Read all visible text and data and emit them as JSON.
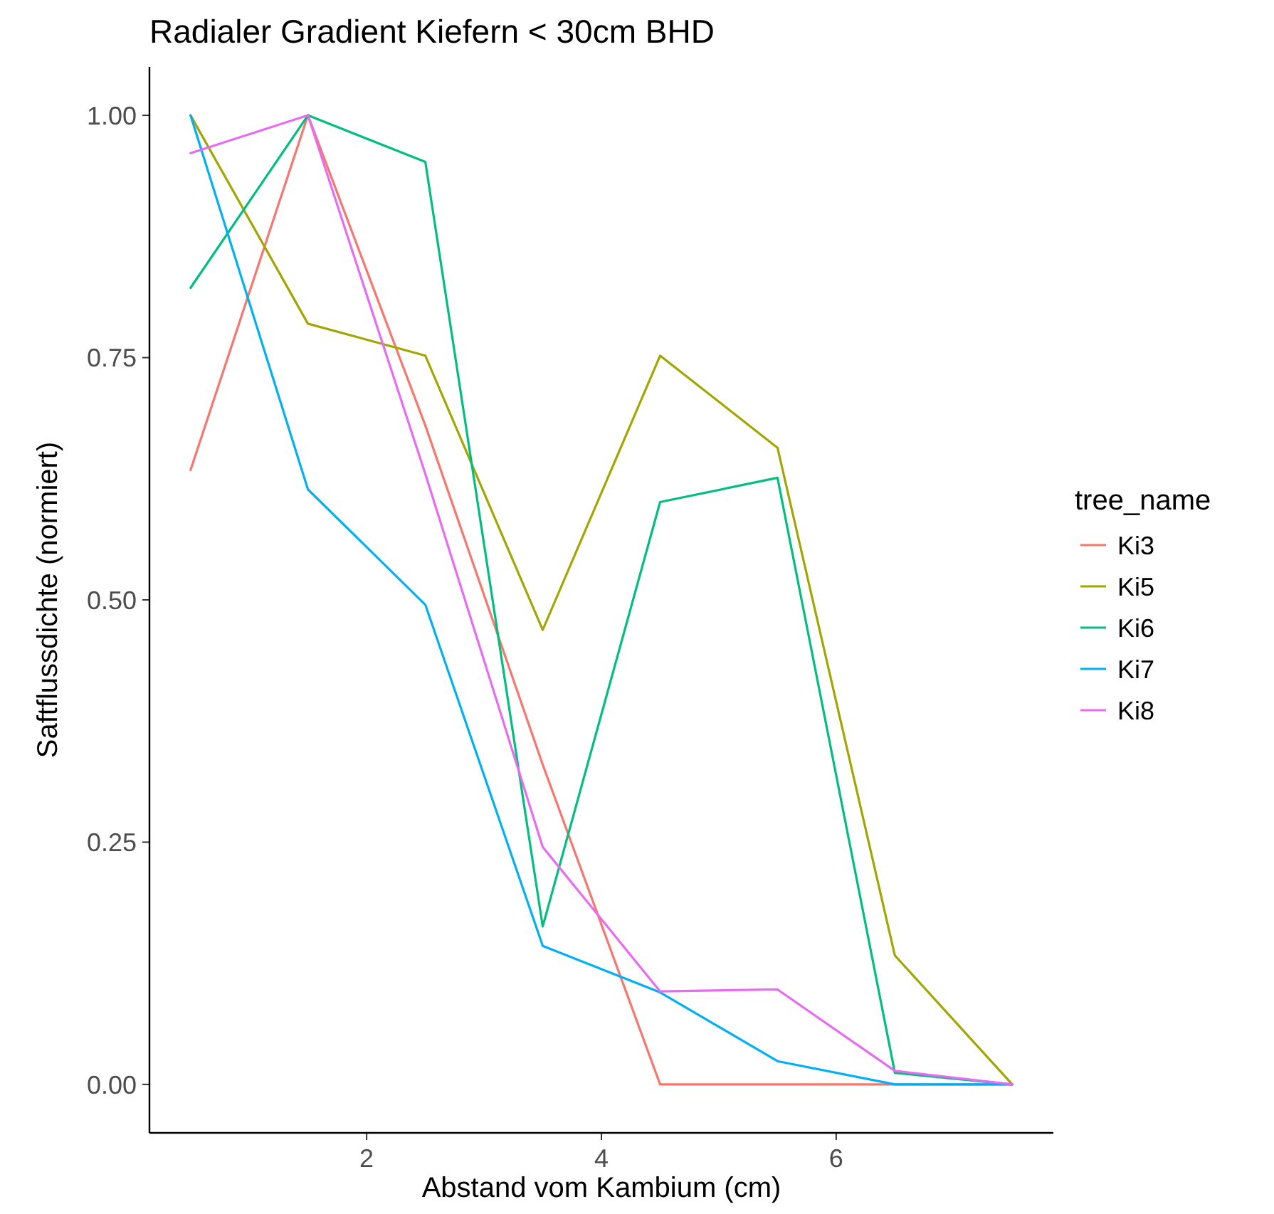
{
  "chart_data": {
    "type": "line",
    "title": "Radialer Gradient Kiefern < 30cm BHD",
    "xlabel": "Abstand vom Kambium (cm)",
    "ylabel": "Saftflussdichte (normiert)",
    "legend_title": "tree_name",
    "legend": "right",
    "grid": false,
    "x": [
      0.5,
      1.5,
      2.5,
      3.5,
      4.5,
      5.5,
      6.5,
      7.5
    ],
    "xlim": [
      0.15,
      7.85
    ],
    "xticks": [
      2,
      4,
      6
    ],
    "ylim": [
      -0.05,
      1.05
    ],
    "yticks": [
      {
        "value": 0,
        "label": "0.00"
      },
      {
        "value": 0.25,
        "label": "0.25"
      },
      {
        "value": 0.5,
        "label": "0.50"
      },
      {
        "value": 0.75,
        "label": "0.75"
      },
      {
        "value": 1,
        "label": "1.00"
      }
    ],
    "series": [
      {
        "name": "Ki3",
        "color": "#f8766d",
        "values": [
          0.634,
          1.0,
          0.68,
          0.33,
          0,
          0,
          0,
          0
        ]
      },
      {
        "name": "Ki5",
        "color": "#a3a500",
        "values": [
          1.0,
          0.785,
          0.752,
          0.469,
          0.752,
          0.657,
          0.133,
          0
        ]
      },
      {
        "name": "Ki6",
        "color": "#00bf7d",
        "values": [
          0.822,
          1.0,
          0.952,
          0.163,
          0.601,
          0.626,
          0.012,
          0
        ]
      },
      {
        "name": "Ki7",
        "color": "#00b0f6",
        "values": [
          1.0,
          0.614,
          0.495,
          0.143,
          0.095,
          0.024,
          0,
          0
        ]
      },
      {
        "name": "Ki8",
        "color": "#e76bf3",
        "values": [
          0.961,
          1.0,
          0.63,
          0.245,
          0.096,
          0.098,
          0.014,
          0
        ]
      }
    ]
  }
}
